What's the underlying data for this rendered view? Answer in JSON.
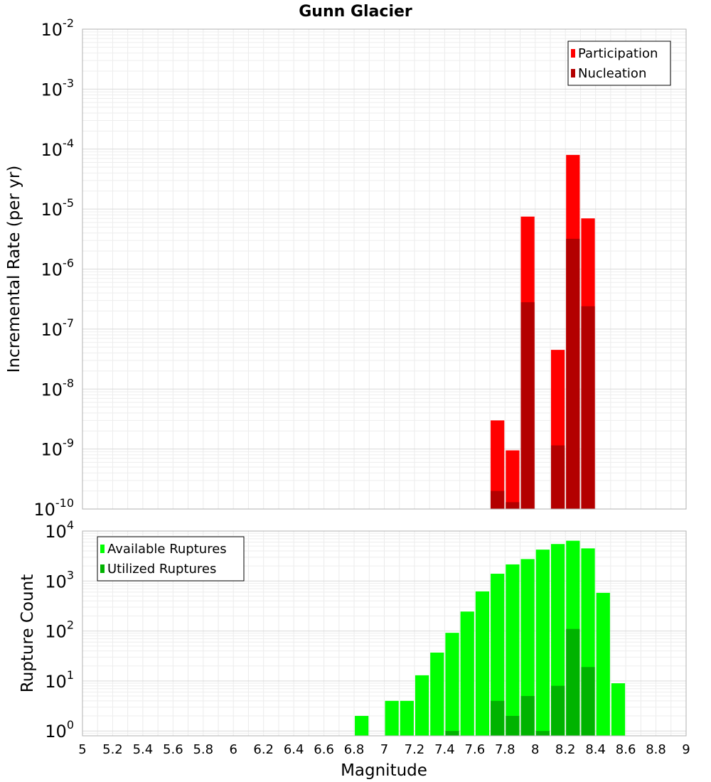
{
  "chart_data": [
    {
      "type": "bar",
      "title": "Gunn Glacier",
      "xlabel": "",
      "ylabel": "Incremental Rate (per yr)",
      "yscale": "log",
      "ylim": [
        1e-10,
        0.01
      ],
      "xlim": [
        5,
        9
      ],
      "y_ticks": [
        {
          "base": "10",
          "exp": "-10"
        },
        {
          "base": "10",
          "exp": "-9"
        },
        {
          "base": "10",
          "exp": "-8"
        },
        {
          "base": "10",
          "exp": "-7"
        },
        {
          "base": "10",
          "exp": "-6"
        },
        {
          "base": "10",
          "exp": "-5"
        },
        {
          "base": "10",
          "exp": "-4"
        },
        {
          "base": "10",
          "exp": "-3"
        },
        {
          "base": "10",
          "exp": "-2"
        }
      ],
      "legend_position": "top-right",
      "series": [
        {
          "name": "Participation",
          "color": "#ff0000",
          "points": [
            {
              "x": 7.75,
              "y": 3e-09
            },
            {
              "x": 7.85,
              "y": 9.5e-10
            },
            {
              "x": 7.95,
              "y": 7.5e-06
            },
            {
              "x": 8.15,
              "y": 4.5e-08
            },
            {
              "x": 8.25,
              "y": 8e-05
            },
            {
              "x": 8.35,
              "y": 7e-06
            }
          ]
        },
        {
          "name": "Nucleation",
          "color": "#b30000",
          "points": [
            {
              "x": 7.75,
              "y": 2e-10
            },
            {
              "x": 7.85,
              "y": 1.3e-10
            },
            {
              "x": 7.95,
              "y": 2.8e-07
            },
            {
              "x": 8.15,
              "y": 1.15e-09
            },
            {
              "x": 8.25,
              "y": 3.2e-06
            },
            {
              "x": 8.35,
              "y": 2.4e-07
            }
          ]
        }
      ]
    },
    {
      "type": "bar",
      "title": "",
      "xlabel": "Magnitude",
      "ylabel": "Rupture Count",
      "yscale": "log",
      "ylim": [
        0.8,
        10000
      ],
      "xlim": [
        5,
        9
      ],
      "x_ticks": [
        "5",
        "5.2",
        "5.4",
        "5.6",
        "5.8",
        "6",
        "6.2",
        "6.4",
        "6.6",
        "6.8",
        "7",
        "7.2",
        "7.4",
        "7.6",
        "7.8",
        "8",
        "8.2",
        "8.4",
        "8.6",
        "8.8",
        "9"
      ],
      "y_ticks": [
        {
          "base": "10",
          "exp": "0"
        },
        {
          "base": "10",
          "exp": "1"
        },
        {
          "base": "10",
          "exp": "2"
        },
        {
          "base": "10",
          "exp": "3"
        },
        {
          "base": "10",
          "exp": "4"
        }
      ],
      "legend_position": "top-left",
      "series": [
        {
          "name": "Available Ruptures",
          "color": "#00ff00",
          "points": [
            {
              "x": 6.85,
              "y": 2
            },
            {
              "x": 7.05,
              "y": 4
            },
            {
              "x": 7.15,
              "y": 4
            },
            {
              "x": 7.25,
              "y": 13
            },
            {
              "x": 7.35,
              "y": 37
            },
            {
              "x": 7.45,
              "y": 92
            },
            {
              "x": 7.55,
              "y": 245
            },
            {
              "x": 7.65,
              "y": 620
            },
            {
              "x": 7.75,
              "y": 1400
            },
            {
              "x": 7.85,
              "y": 2150
            },
            {
              "x": 7.95,
              "y": 2750
            },
            {
              "x": 8.05,
              "y": 4250
            },
            {
              "x": 8.15,
              "y": 5500
            },
            {
              "x": 8.25,
              "y": 6400
            },
            {
              "x": 8.35,
              "y": 4500
            },
            {
              "x": 8.45,
              "y": 580
            },
            {
              "x": 8.55,
              "y": 9
            }
          ]
        },
        {
          "name": "Utilized Ruptures",
          "color": "#00b300",
          "points": [
            {
              "x": 7.45,
              "y": 1
            },
            {
              "x": 7.75,
              "y": 4
            },
            {
              "x": 7.85,
              "y": 2
            },
            {
              "x": 7.95,
              "y": 5
            },
            {
              "x": 8.05,
              "y": 1
            },
            {
              "x": 8.15,
              "y": 8
            },
            {
              "x": 8.25,
              "y": 110
            },
            {
              "x": 8.35,
              "y": 19
            }
          ]
        }
      ]
    }
  ]
}
